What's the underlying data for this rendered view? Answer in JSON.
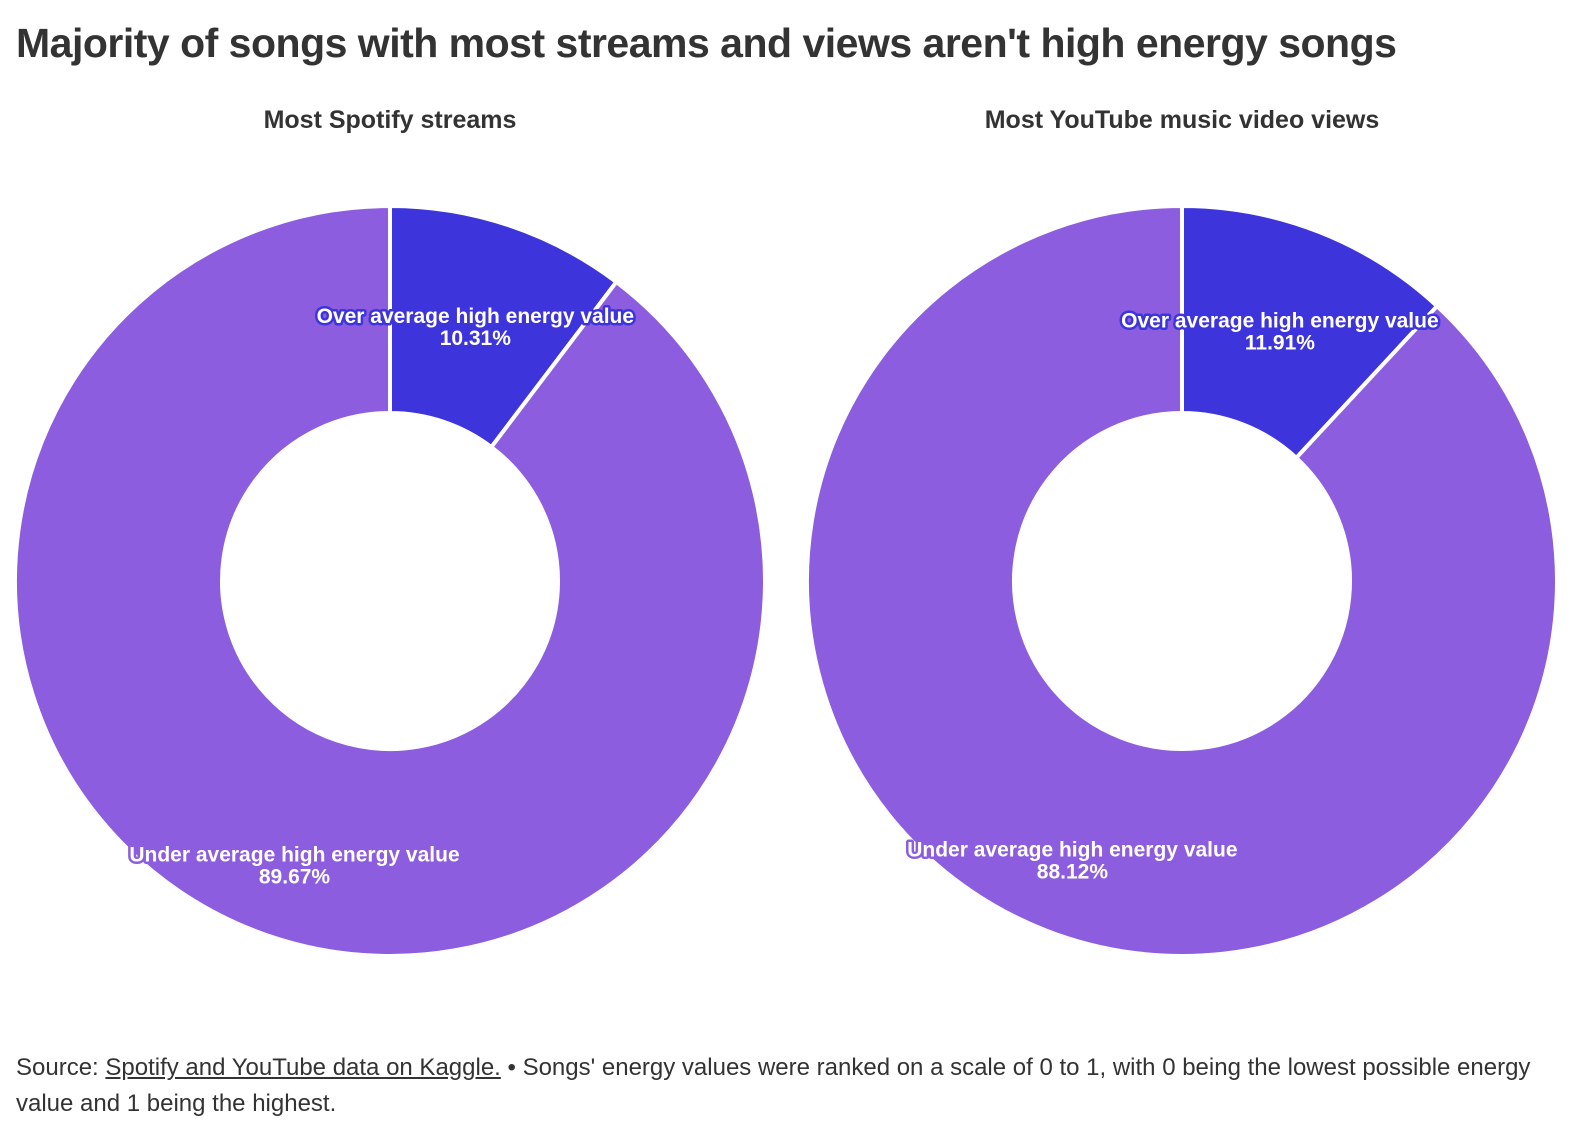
{
  "title": "Majority of songs with most streams and views aren't high energy songs",
  "colors": {
    "over": "#3d34db",
    "under": "#8c5ddf",
    "separator": "#ffffff"
  },
  "footer": {
    "source_prefix": "Source:",
    "source_link": "Spotify and YouTube data on Kaggle.",
    "note": "• Songs' energy values were ranked on a scale of 0 to 1, with 0 being the lowest possible energy value and 1 being the highest."
  },
  "chart_data": [
    {
      "type": "pie",
      "variant": "donut",
      "subtitle": "Most Spotify streams",
      "slices": [
        {
          "label": "Over average high energy value",
          "value": 10.31,
          "display": "10.31%"
        },
        {
          "label": "Under average high energy value",
          "value": 89.67,
          "display": "89.67%"
        }
      ]
    },
    {
      "type": "pie",
      "variant": "donut",
      "subtitle": "Most YouTube music video views",
      "slices": [
        {
          "label": "Over average high energy value",
          "value": 11.91,
          "display": "11.91%"
        },
        {
          "label": "Under average high energy value",
          "value": 88.12,
          "display": "88.12%"
        }
      ]
    }
  ]
}
